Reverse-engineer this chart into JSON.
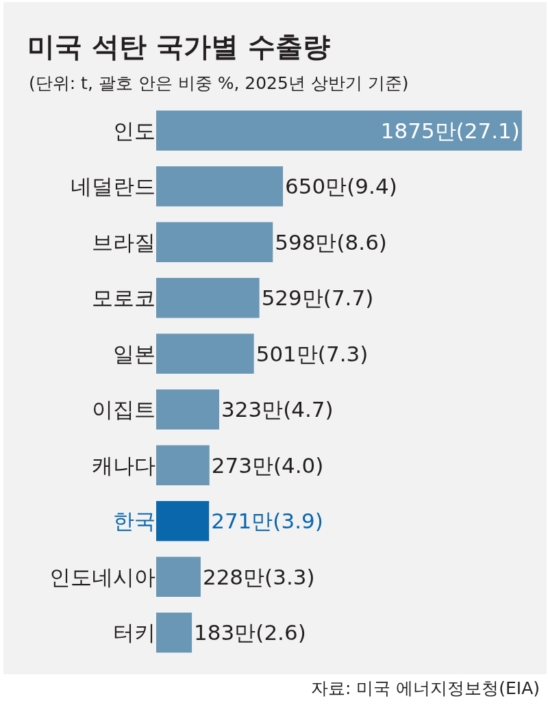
{
  "chart_data": {
    "type": "bar",
    "orientation": "horizontal",
    "title": "미국 석탄 국가별 수출량",
    "subtitle": "(단위: t, 괄호 안은 비중 %, 2025년 상반기 기준)",
    "categories": [
      "인도",
      "네덜란드",
      "브라질",
      "모로코",
      "일본",
      "이집트",
      "캐나다",
      "한국",
      "인도네시아",
      "터키"
    ],
    "values": [
      1875,
      650,
      598,
      529,
      501,
      323,
      273,
      271,
      228,
      183
    ],
    "value_labels": [
      "1875만(27.1)",
      "650만(9.4)",
      "598만(8.6)",
      "529만(7.7)",
      "501만(7.3)",
      "323만(4.7)",
      "273만(4.0)",
      "271만(3.9)",
      "228만(3.3)",
      "183만(2.6)"
    ],
    "colors": [
      "#6a97b5",
      "#6a97b5",
      "#6a97b5",
      "#6a97b5",
      "#6a97b5",
      "#6a97b5",
      "#6a97b5",
      "#0a67ab",
      "#6a97b5",
      "#6a97b5"
    ],
    "tick_labels": "y",
    "annotations": [
      "자료: 미국 에너지정보청(EIA)"
    ]
  }
}
